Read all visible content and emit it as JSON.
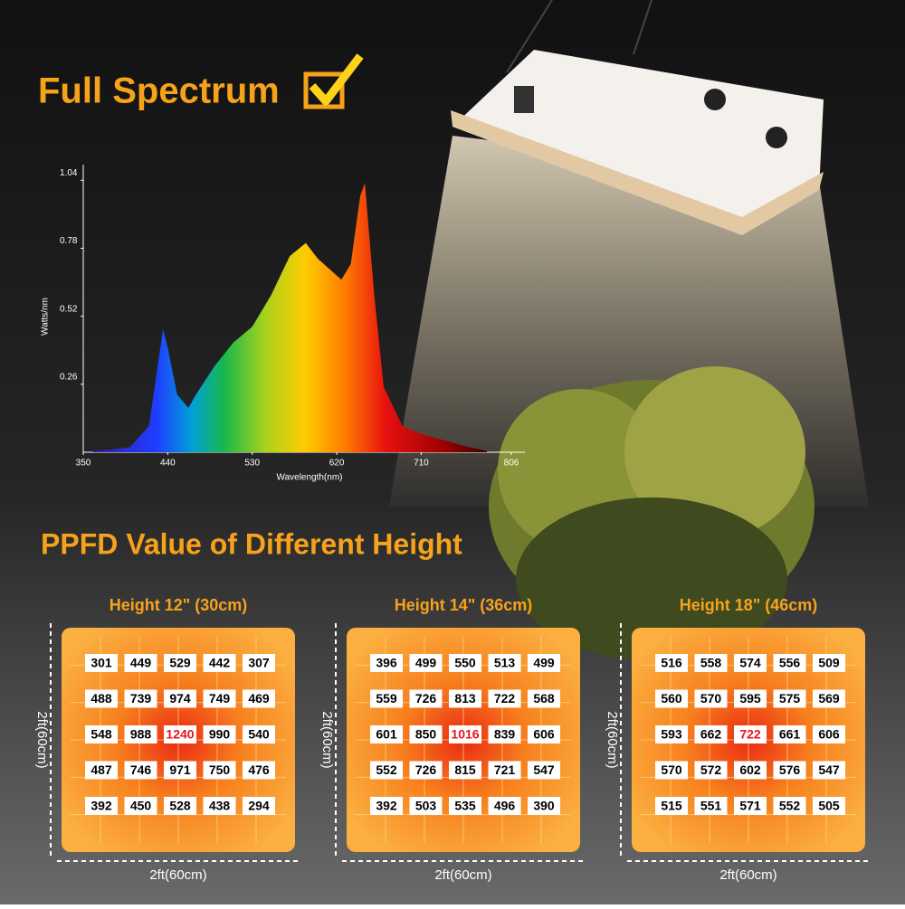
{
  "header": {
    "title": "Full Spectrum"
  },
  "spectrum": {
    "type": "area",
    "y_label": "Watts/nm",
    "x_label": "Wavelength(nm)",
    "x": [
      360,
      380,
      400,
      420,
      430,
      435,
      440,
      450,
      462,
      470,
      490,
      510,
      530,
      550,
      570,
      587,
      600,
      625,
      635,
      645,
      650,
      660,
      670,
      690,
      710,
      730,
      760,
      780
    ],
    "values": [
      0.005,
      0.01,
      0.02,
      0.1,
      0.35,
      0.47,
      0.4,
      0.22,
      0.17,
      0.22,
      0.33,
      0.42,
      0.48,
      0.6,
      0.75,
      0.8,
      0.74,
      0.66,
      0.72,
      0.98,
      1.03,
      0.6,
      0.25,
      0.1,
      0.07,
      0.05,
      0.02,
      0.005
    ],
    "xlim": [
      350,
      806
    ],
    "ylim": [
      0,
      1.1
    ],
    "xticks": [
      350,
      440,
      530,
      620,
      710,
      806
    ],
    "yticks": [
      0.26,
      0.52,
      0.78,
      1.04
    ]
  },
  "ppfd": {
    "title": "PPFD Value of Different Height",
    "grids": [
      {
        "label": "Height 12\" (30cm)",
        "side": "2ft(60cm)",
        "bottom": "2ft(60cm)",
        "rows": [
          [
            301,
            449,
            529,
            442,
            307
          ],
          [
            488,
            739,
            974,
            749,
            469
          ],
          [
            548,
            988,
            1240,
            990,
            540
          ],
          [
            487,
            746,
            971,
            750,
            476
          ],
          [
            392,
            450,
            528,
            438,
            294
          ]
        ]
      },
      {
        "label": "Height 14\" (36cm)",
        "side": "2ft(60cm)",
        "bottom": "2ft(60cm)",
        "rows": [
          [
            396,
            499,
            550,
            513,
            499
          ],
          [
            559,
            726,
            813,
            722,
            568
          ],
          [
            601,
            850,
            1016,
            839,
            606
          ],
          [
            552,
            726,
            815,
            721,
            547
          ],
          [
            392,
            503,
            535,
            496,
            390
          ]
        ]
      },
      {
        "label": "Height 18\" (46cm)",
        "side": "2ft(60cm)",
        "bottom": "2ft(60cm)",
        "rows": [
          [
            516,
            558,
            574,
            556,
            509
          ],
          [
            560,
            570,
            595,
            575,
            569
          ],
          [
            593,
            662,
            722,
            661,
            606
          ],
          [
            570,
            572,
            602,
            576,
            547
          ],
          [
            515,
            551,
            571,
            552,
            505
          ]
        ]
      }
    ]
  }
}
